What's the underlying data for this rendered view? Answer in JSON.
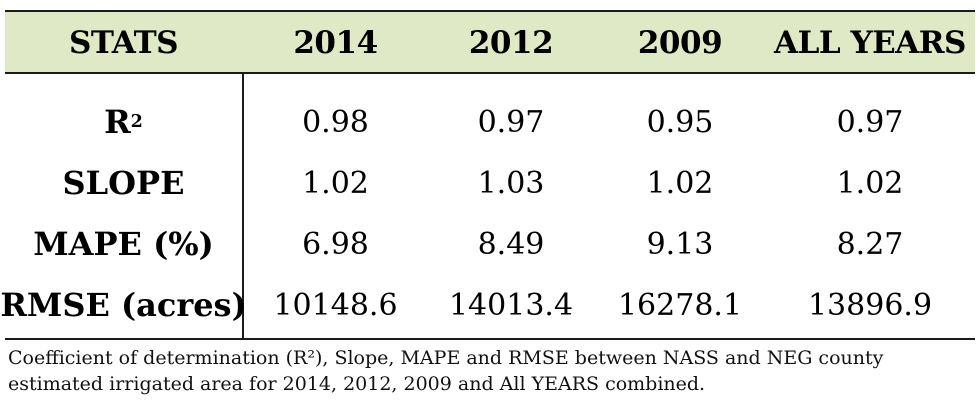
{
  "table": {
    "headers": [
      "STATS",
      "2014",
      "2012",
      "2009",
      "ALL YEARS"
    ],
    "rows": [
      {
        "label_base": "R",
        "label_sup": "2",
        "values": [
          "0.98",
          "0.97",
          "0.95",
          "0.97"
        ]
      },
      {
        "label_base": "SLOPE",
        "label_sup": "",
        "values": [
          "1.02",
          "1.03",
          "1.02",
          "1.02"
        ]
      },
      {
        "label_base": "MAPE (%)",
        "label_sup": "",
        "values": [
          "6.98",
          "8.49",
          "9.13",
          "8.27"
        ]
      },
      {
        "label_base": "RMSE (acres)",
        "label_sup": "",
        "values": [
          "10148.6",
          "14013.4",
          "16278.1",
          "13896.9"
        ]
      }
    ],
    "header_bg_color": "#dfe9c5"
  },
  "caption": {
    "line1": "Coefficient of determination (R²), Slope, MAPE and RMSE between NASS and NEG county",
    "line2": "estimated irrigated area for 2014, 2012, 2009 and All YEARS combined."
  }
}
